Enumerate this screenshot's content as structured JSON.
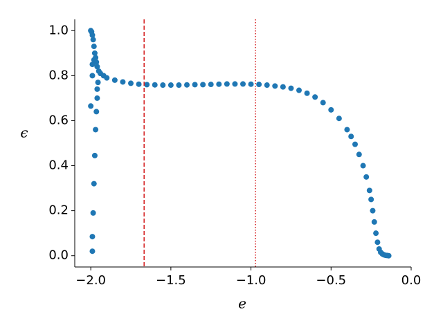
{
  "chart_data": {
    "type": "scatter",
    "x_label": "e",
    "y_label": "ϵ",
    "xlim": [
      -2.1,
      0.0
    ],
    "ylim": [
      -0.05,
      1.05
    ],
    "xticks": [
      {
        "value": -2.0,
        "label": "−2.0"
      },
      {
        "value": -1.5,
        "label": "−1.5"
      },
      {
        "value": -1.0,
        "label": "−1.0"
      },
      {
        "value": -0.5,
        "label": "−0.5"
      },
      {
        "value": 0.0,
        "label": "0.0"
      }
    ],
    "yticks": [
      {
        "value": 0.0,
        "label": "0.0"
      },
      {
        "value": 0.2,
        "label": "0.2"
      },
      {
        "value": 0.4,
        "label": "0.4"
      },
      {
        "value": 0.6,
        "label": "0.6"
      },
      {
        "value": 0.8,
        "label": "0.8"
      },
      {
        "value": 1.0,
        "label": "1.0"
      }
    ],
    "vlines": [
      {
        "x": -1.667,
        "color": "#d62728",
        "style": "dashed"
      },
      {
        "x": -0.972,
        "color": "#d62728",
        "style": "dotted"
      }
    ],
    "series": [
      {
        "color": "#1f77b4",
        "x": [
          -2.0,
          -1.995,
          -1.99,
          -1.985,
          -1.98,
          -1.975,
          -1.97,
          -1.965,
          -1.96,
          -2.0,
          -1.99,
          -1.99,
          -1.99,
          -1.985,
          -1.98,
          -1.975,
          -1.97,
          -1.965,
          -1.96,
          -1.96,
          -1.955,
          -1.99,
          -1.98,
          -1.95,
          -1.94,
          -1.92,
          -1.9,
          -1.85,
          -1.8,
          -1.75,
          -1.7,
          -1.65,
          -1.6,
          -1.55,
          -1.5,
          -1.45,
          -1.4,
          -1.35,
          -1.3,
          -1.25,
          -1.2,
          -1.15,
          -1.1,
          -1.05,
          -1.0,
          -0.95,
          -0.9,
          -0.85,
          -0.8,
          -0.75,
          -0.7,
          -0.65,
          -0.6,
          -0.55,
          -0.5,
          -0.45,
          -0.4,
          -0.375,
          -0.35,
          -0.325,
          -0.3,
          -0.28,
          -0.26,
          -0.25,
          -0.24,
          -0.23,
          -0.22,
          -0.21,
          -0.2,
          -0.19,
          -0.18,
          -0.17,
          -0.16,
          -0.15,
          -0.14
        ],
        "values": [
          1.0,
          0.995,
          0.98,
          0.96,
          0.93,
          0.9,
          0.88,
          0.86,
          0.84,
          0.665,
          0.8,
          0.02,
          0.085,
          0.19,
          0.32,
          0.445,
          0.56,
          0.64,
          0.7,
          0.74,
          0.77,
          0.85,
          0.87,
          0.82,
          0.81,
          0.8,
          0.79,
          0.78,
          0.772,
          0.766,
          0.762,
          0.76,
          0.759,
          0.758,
          0.758,
          0.758,
          0.759,
          0.76,
          0.76,
          0.761,
          0.762,
          0.763,
          0.763,
          0.763,
          0.762,
          0.761,
          0.758,
          0.754,
          0.75,
          0.744,
          0.735,
          0.722,
          0.705,
          0.68,
          0.648,
          0.61,
          0.56,
          0.53,
          0.495,
          0.45,
          0.4,
          0.35,
          0.29,
          0.25,
          0.2,
          0.15,
          0.1,
          0.06,
          0.03,
          0.015,
          0.008,
          0.004,
          0.002,
          0.001,
          0.0
        ]
      }
    ]
  }
}
